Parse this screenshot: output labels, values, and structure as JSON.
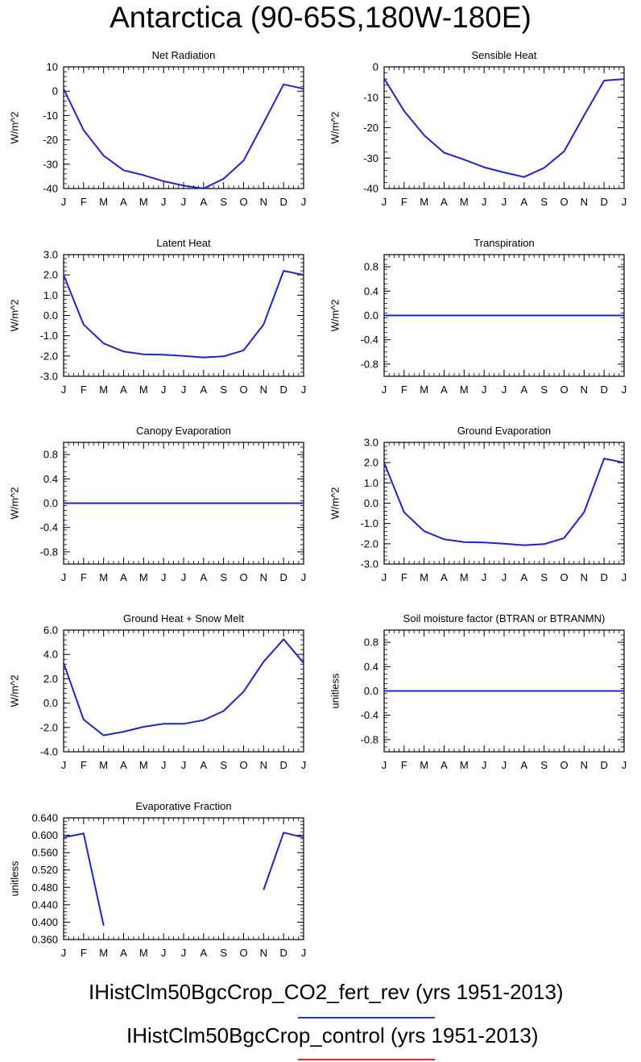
{
  "title": "Antarctica (90-65S,180W-180E)",
  "legend": [
    {
      "label": "IHistClm50BgcCrop_CO2_fert_rev (yrs 1951-2013)",
      "color": "#2233dd"
    },
    {
      "label": "IHistClm50BgcCrop_control (yrs 1951-2013)",
      "color": "#ee2222"
    }
  ],
  "line_color": "#2222cc",
  "chart_data": [
    {
      "type": "line",
      "title": "Net Radiation",
      "xlabel": "",
      "ylabel": "W/m^2",
      "x": [
        "J",
        "F",
        "M",
        "A",
        "M",
        "J",
        "J",
        "A",
        "S",
        "O",
        "N",
        "D",
        "J"
      ],
      "ylim": [
        -40,
        10
      ],
      "yticks": [
        10,
        0,
        -10,
        -20,
        -30,
        -40
      ],
      "ytick_labels": [
        "10",
        "0",
        "-10",
        "-20",
        "-30",
        "-40"
      ],
      "series": [
        {
          "values": [
            1,
            -16,
            -26.5,
            -32.5,
            -34.5,
            -37,
            -38.8,
            -40,
            -36,
            -28.5,
            -13,
            2.8,
            1
          ]
        }
      ]
    },
    {
      "type": "line",
      "title": "Sensible Heat",
      "xlabel": "",
      "ylabel": "W/m^2",
      "x": [
        "J",
        "F",
        "M",
        "A",
        "M",
        "J",
        "J",
        "A",
        "S",
        "O",
        "N",
        "D",
        "J"
      ],
      "ylim": [
        -40,
        0
      ],
      "yticks": [
        0,
        -10,
        -20,
        -30,
        -40
      ],
      "ytick_labels": [
        "0",
        "-10",
        "-20",
        "-30",
        "-40"
      ],
      "series": [
        {
          "values": [
            -3.8,
            -14.5,
            -22.5,
            -28.2,
            -30.5,
            -33,
            -34.7,
            -36.2,
            -33.2,
            -27.8,
            -16,
            -4.5,
            -4
          ]
        }
      ]
    },
    {
      "type": "line",
      "title": "Latent Heat",
      "xlabel": "",
      "ylabel": "W/m^2",
      "x": [
        "J",
        "F",
        "M",
        "A",
        "M",
        "J",
        "J",
        "A",
        "S",
        "O",
        "N",
        "D",
        "J"
      ],
      "ylim": [
        -3,
        3
      ],
      "yticks": [
        3,
        2,
        1,
        0,
        -1,
        -2,
        -3
      ],
      "ytick_labels": [
        "3.0",
        "2.0",
        "1.0",
        "0.0",
        "-1.0",
        "-2.0",
        "-3.0"
      ],
      "series": [
        {
          "values": [
            2.0,
            -0.45,
            -1.38,
            -1.78,
            -1.92,
            -1.94,
            -2.0,
            -2.07,
            -2.02,
            -1.72,
            -0.45,
            2.2,
            2.0
          ]
        }
      ]
    },
    {
      "type": "line",
      "title": "Transpiration",
      "xlabel": "",
      "ylabel": "W/m^2",
      "x": [
        "J",
        "F",
        "M",
        "A",
        "M",
        "J",
        "J",
        "A",
        "S",
        "O",
        "N",
        "D",
        "J"
      ],
      "ylim": [
        -1,
        1
      ],
      "yticks": [
        0.8,
        0.4,
        0,
        -0.4,
        -0.8
      ],
      "ytick_labels": [
        "0.8",
        "0.4",
        "0.0",
        "-0.4",
        "-0.8"
      ],
      "series": [
        {
          "values": [
            0,
            0,
            0,
            0,
            0,
            0,
            0,
            0,
            0,
            0,
            0,
            0,
            0
          ]
        }
      ]
    },
    {
      "type": "line",
      "title": "Canopy Evaporation",
      "xlabel": "",
      "ylabel": "W/m^2",
      "x": [
        "J",
        "F",
        "M",
        "A",
        "M",
        "J",
        "J",
        "A",
        "S",
        "O",
        "N",
        "D",
        "J"
      ],
      "ylim": [
        -1,
        1
      ],
      "yticks": [
        0.8,
        0.4,
        0,
        -0.4,
        -0.8
      ],
      "ytick_labels": [
        "0.8",
        "0.4",
        "0.0",
        "-0.4",
        "-0.8"
      ],
      "series": [
        {
          "values": [
            0,
            0,
            0,
            0,
            0,
            0,
            0,
            0,
            0,
            0,
            0,
            0,
            0
          ]
        }
      ]
    },
    {
      "type": "line",
      "title": "Ground Evaporation",
      "xlabel": "",
      "ylabel": "W/m^2",
      "x": [
        "J",
        "F",
        "M",
        "A",
        "M",
        "J",
        "J",
        "A",
        "S",
        "O",
        "N",
        "D",
        "J"
      ],
      "ylim": [
        -3,
        3
      ],
      "yticks": [
        3,
        2,
        1,
        0,
        -1,
        -2,
        -3
      ],
      "ytick_labels": [
        "3.0",
        "2.0",
        "1.0",
        "0.0",
        "-1.0",
        "-2.0",
        "-3.0"
      ],
      "series": [
        {
          "values": [
            2.0,
            -0.45,
            -1.38,
            -1.78,
            -1.92,
            -1.94,
            -2.0,
            -2.07,
            -2.02,
            -1.72,
            -0.45,
            2.2,
            2.0
          ]
        }
      ]
    },
    {
      "type": "line",
      "title": "Ground Heat + Snow Melt",
      "xlabel": "",
      "ylabel": "W/m^2",
      "x": [
        "J",
        "F",
        "M",
        "A",
        "M",
        "J",
        "J",
        "A",
        "S",
        "O",
        "N",
        "D",
        "J"
      ],
      "ylim": [
        -4,
        6
      ],
      "yticks": [
        6,
        4,
        2,
        0,
        -2,
        -4
      ],
      "ytick_labels": [
        "6.0",
        "4.0",
        "2.0",
        "0.0",
        "-2.0",
        "-4.0"
      ],
      "series": [
        {
          "values": [
            3.3,
            -1.35,
            -2.65,
            -2.35,
            -1.95,
            -1.7,
            -1.7,
            -1.4,
            -0.65,
            0.95,
            3.4,
            5.25,
            3.3
          ]
        }
      ]
    },
    {
      "type": "line",
      "title": "Soil moisture factor (BTRAN or BTRANMN)",
      "xlabel": "",
      "ylabel": "unitless",
      "x": [
        "J",
        "F",
        "M",
        "A",
        "M",
        "J",
        "J",
        "A",
        "S",
        "O",
        "N",
        "D",
        "J"
      ],
      "ylim": [
        -1,
        1
      ],
      "yticks": [
        0.8,
        0.4,
        0,
        -0.4,
        -0.8
      ],
      "ytick_labels": [
        "0.8",
        "0.4",
        "0.0",
        "-0.4",
        "-0.8"
      ],
      "series": [
        {
          "values": [
            0,
            0,
            0,
            0,
            0,
            0,
            0,
            0,
            0,
            0,
            0,
            0,
            0
          ]
        }
      ]
    },
    {
      "type": "line",
      "title": "Evaporative Fraction",
      "xlabel": "",
      "ylabel": "unitless",
      "x": [
        "J",
        "F",
        "M",
        "A",
        "M",
        "J",
        "J",
        "A",
        "S",
        "O",
        "N",
        "D",
        "J"
      ],
      "ylim": [
        0.36,
        0.64
      ],
      "yticks": [
        0.64,
        0.6,
        0.56,
        0.52,
        0.48,
        0.44,
        0.4,
        0.36
      ],
      "ytick_labels": [
        "0.640",
        "0.600",
        "0.560",
        "0.520",
        "0.480",
        "0.440",
        "0.400",
        "0.360"
      ],
      "series": [
        {
          "values": [
            0.595,
            0.604,
            0.392,
            null,
            null,
            null,
            null,
            null,
            null,
            null,
            0.474,
            0.606,
            0.595
          ]
        }
      ]
    }
  ]
}
